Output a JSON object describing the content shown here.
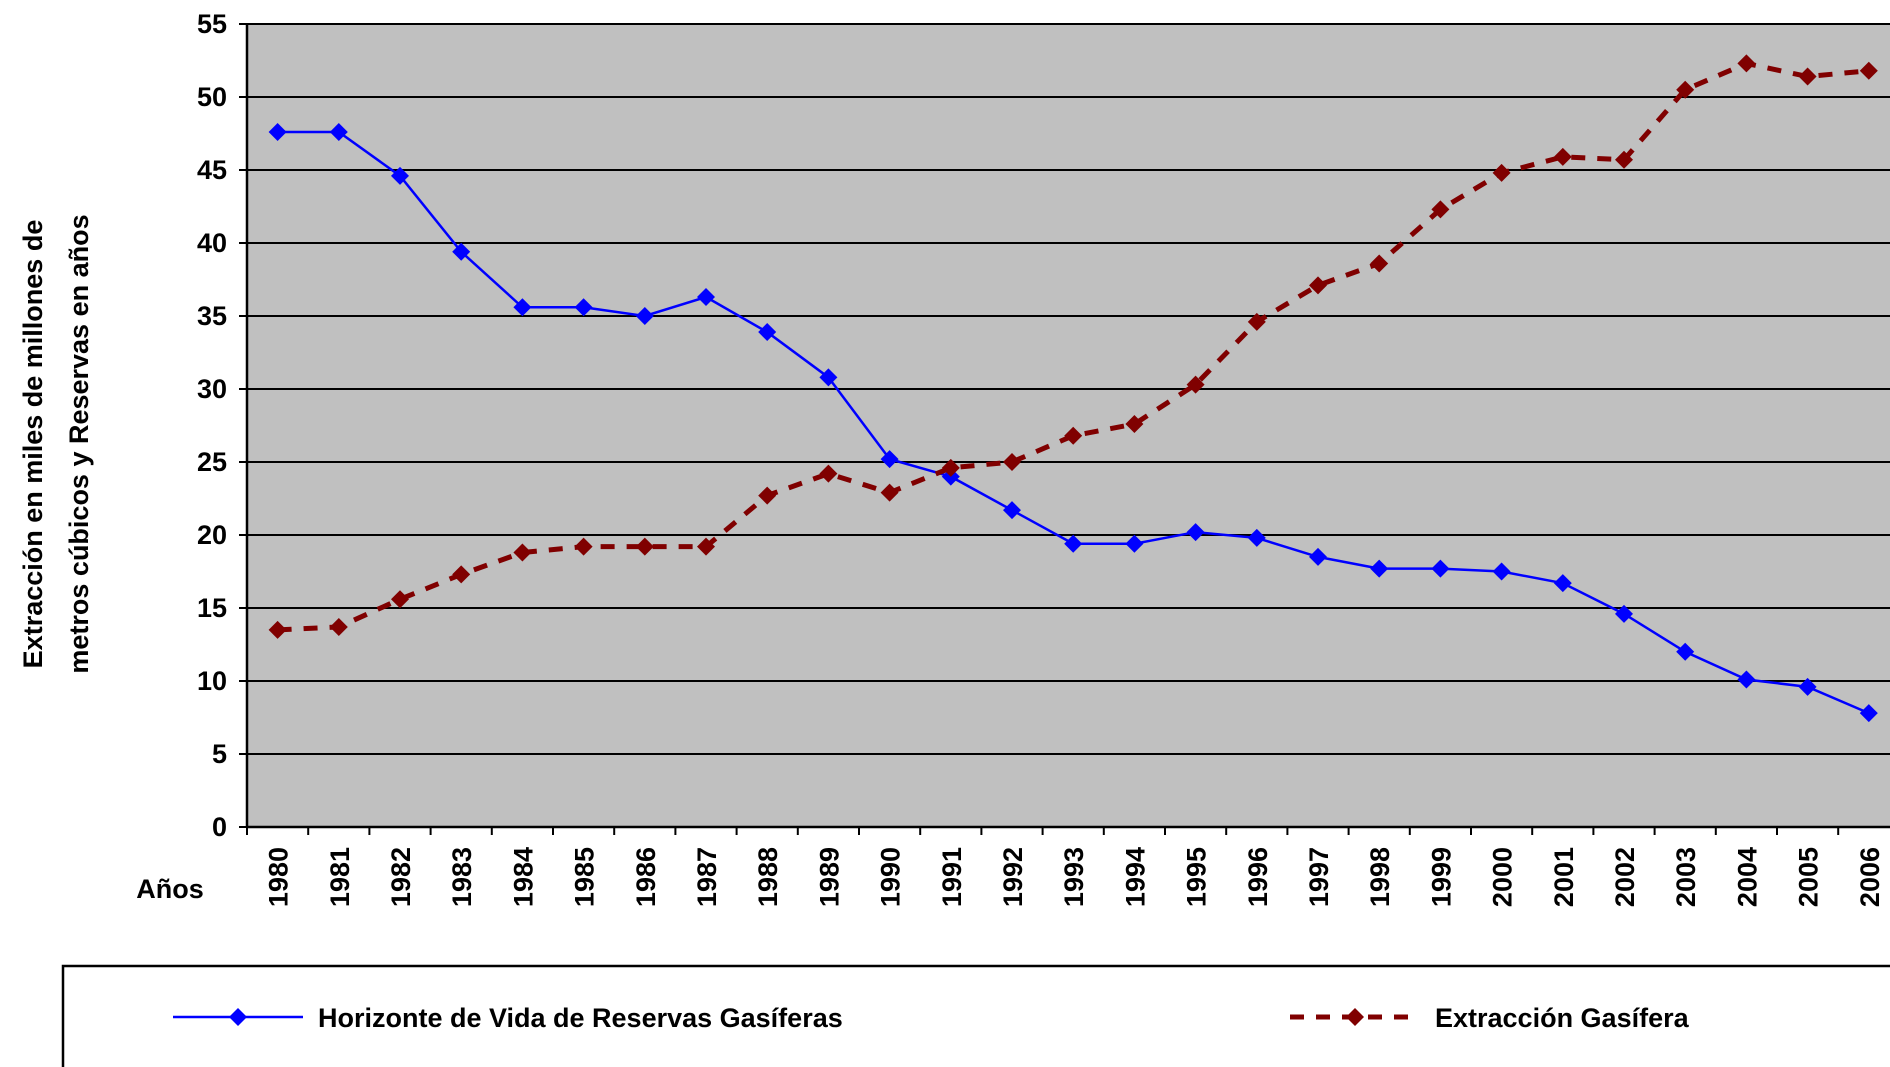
{
  "chart_data": {
    "type": "line",
    "y_label": [
      "Extracción en miles de millones de",
      "metros cúbicos y Reservas en años"
    ],
    "x_label": "Años",
    "categories": [
      "1980",
      "1981",
      "1982",
      "1983",
      "1984",
      "1985",
      "1986",
      "1987",
      "1988",
      "1989",
      "1990",
      "1991",
      "1992",
      "1993",
      "1994",
      "1995",
      "1996",
      "1997",
      "1998",
      "1999",
      "2000",
      "2001",
      "2002",
      "2003",
      "2004",
      "2005",
      "2006"
    ],
    "series": [
      {
        "name": "Horizonte de Vida de Reservas Gasíferas",
        "color": "#0000ff",
        "dashed": false,
        "values": [
          47.6,
          47.6,
          44.6,
          39.4,
          35.6,
          35.6,
          35.0,
          36.3,
          33.9,
          30.8,
          25.2,
          24.0,
          21.7,
          19.4,
          19.4,
          20.2,
          19.8,
          18.5,
          17.7,
          17.7,
          17.5,
          16.7,
          14.6,
          12.0,
          10.1,
          9.6,
          7.8
        ]
      },
      {
        "name": "Extracción Gasífera",
        "color": "#800000",
        "dashed": true,
        "values": [
          13.5,
          13.7,
          15.6,
          17.3,
          18.8,
          19.2,
          19.2,
          19.2,
          22.7,
          24.2,
          22.9,
          24.6,
          25.0,
          26.8,
          27.6,
          30.3,
          34.6,
          37.1,
          38.6,
          42.3,
          44.8,
          45.9,
          45.7,
          50.5,
          52.3,
          51.4,
          51.8
        ]
      }
    ],
    "ylim": [
      0,
      55
    ],
    "yticks": [
      0,
      5,
      10,
      15,
      20,
      25,
      30,
      35,
      40,
      45,
      50,
      55
    ],
    "grid": true
  }
}
